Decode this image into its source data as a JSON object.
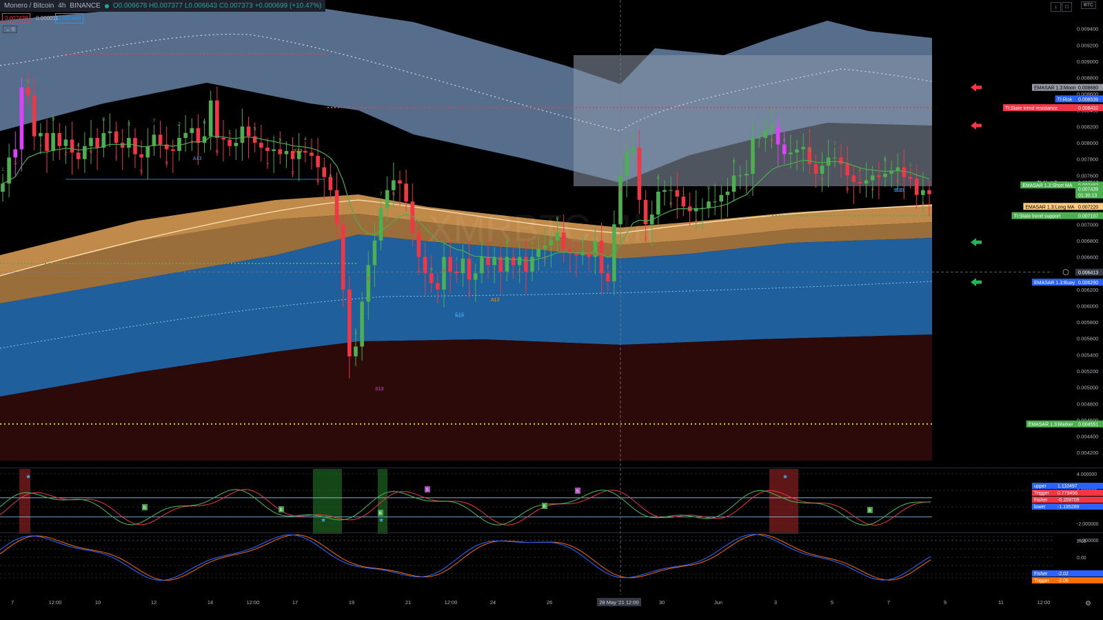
{
  "header": {
    "symbol": "Monero / Bitcoin",
    "interval": "4h",
    "exchange": "BINANCE",
    "ohlc": "O0.006678 H0.007377 L0.006643 C0.007373 +0.000699 (+10.47%)",
    "sell": "0.007438",
    "spread": "0.000011",
    "buy": "0.007449",
    "collapse_label": "6",
    "currency_btn": "BTC",
    "watermark": "XMRBTC, 4h"
  },
  "colors": {
    "bg": "#000000",
    "up": "#26a69a",
    "up_candle": "#4caf50",
    "down_candle": "#f23645",
    "pink_candle": "#e040fb",
    "moon_band": "#5b7394",
    "risk_band": "#8e9aab",
    "long_ma_band": "#c08a4a",
    "buy_band": "#1f5f9c",
    "marker_band": "#2d0a0a",
    "short_ma": "#4caf50",
    "resistance": "#f23645",
    "support": "#4caf50"
  },
  "icons": [
    "red-arrow-left-icon",
    "green-arrow-left-icon",
    "star-icon",
    "plus-circle-icon",
    "settings-icon"
  ],
  "chart_data": {
    "type": "candlestick",
    "title": "",
    "price_axis": {
      "min": 0.0041,
      "max": 0.0096,
      "ticks": [
        "0.009400",
        "0.009200",
        "0.009000",
        "0.008800",
        "0.008600",
        "0.008400",
        "0.008200",
        "0.008000",
        "0.007800",
        "0.007600",
        "0.007400",
        "0.007200",
        "0.007000",
        "0.006800",
        "0.006600",
        "0.006400",
        "0.006200",
        "0.006000",
        "0.005800",
        "0.005600",
        "0.005400",
        "0.005200",
        "0.005000",
        "0.004800",
        "0.004600",
        "0.004400",
        "0.004200"
      ]
    },
    "time_axis": {
      "ticks": [
        "7",
        "12:00",
        "10",
        "12",
        "14",
        "12:00",
        "17",
        "19",
        "21",
        "12:00",
        "24",
        "26",
        "28 May '21",
        "12:00",
        "30",
        "Jun",
        "3",
        "5",
        "7",
        "9",
        "11",
        "12:00"
      ],
      "cursor_label": "28 May '21  12:00"
    },
    "closes": [
      0.0075,
      0.00782,
      0.00792,
      0.00868,
      0.00858,
      0.00808,
      0.00812,
      0.0079,
      0.00812,
      0.00796,
      0.00804,
      0.00788,
      0.0078,
      0.00796,
      0.00806,
      0.00794,
      0.00812,
      0.00814,
      0.008,
      0.00794,
      0.00806,
      0.00786,
      0.00782,
      0.00796,
      0.0081,
      0.00798,
      0.00792,
      0.0079,
      0.00806,
      0.00812,
      0.00818,
      0.008,
      0.00808,
      0.00852,
      0.00806,
      0.00804,
      0.00796,
      0.008,
      0.0082,
      0.00808,
      0.008,
      0.00794,
      0.0079,
      0.00792,
      0.00786,
      0.0079,
      0.0078,
      0.0079,
      0.00788,
      0.00784,
      0.0077,
      0.00758,
      0.00742,
      0.007,
      0.0062,
      0.00538,
      0.0055,
      0.00605,
      0.0065,
      0.0068,
      0.0072,
      0.00742,
      0.00754,
      0.0075,
      0.00728,
      0.0069,
      0.0066,
      0.0064,
      0.00628,
      0.0062,
      0.0066,
      0.00642,
      0.0064,
      0.00658,
      0.00632,
      0.0064,
      0.0066,
      0.0065,
      0.0066,
      0.00642,
      0.0066,
      0.0065,
      0.0066,
      0.00642,
      0.0066,
      0.0067,
      0.00674,
      0.0068,
      0.0069,
      0.0067,
      0.00664,
      0.00662,
      0.00664,
      0.0066,
      0.0068,
      0.0064,
      0.0063,
      0.007,
      0.0076,
      0.00788,
      0.00794,
      0.0073,
      0.007,
      0.00712,
      0.0074,
      0.00742,
      0.00742,
      0.00734,
      0.00722,
      0.00716,
      0.0072,
      0.0072,
      0.00728,
      0.00728,
      0.00736,
      0.0074,
      0.0076,
      0.0076,
      0.00762,
      0.00806,
      0.00806,
      0.00815,
      0.0082,
      0.00798,
      0.00786,
      0.00788,
      0.00792,
      0.00795,
      0.00774,
      0.00762,
      0.00772,
      0.00782,
      0.00782,
      0.00774,
      0.0076,
      0.00752,
      0.0075,
      0.00754,
      0.0076,
      0.00758,
      0.00762,
      0.00766,
      0.0077,
      0.00758,
      0.00756,
      0.00736,
      0.00742,
      0.00737
    ],
    "tags": [
      {
        "label": "EMASAR 1.3:Moon",
        "value": "0.008680",
        "color": "#9598a1",
        "text": "#000000",
        "price": 0.00868
      },
      {
        "label": "TI:Risk",
        "value": "0.008539",
        "color": "#2962ff",
        "text": "#ffffff",
        "price": 0.008539
      },
      {
        "label": "TI:State trend resistance",
        "value": "0.008432",
        "color": "#f23645",
        "text": "#ffffff",
        "price": 0.008432
      },
      {
        "label": "TI:Alert Count",
        "value": "0.007517",
        "color": "#000000",
        "text": "#d1d4dc",
        "price": 0.007517
      },
      {
        "label": "EMASAR 1.3:Short MA",
        "value": "0.007483",
        "color": "#4caf50",
        "text": "#ffffff",
        "price": 0.007483
      },
      {
        "label": "",
        "value": "0.007439",
        "color": "#4caf50",
        "text": "#ffffff",
        "price": 0.007439
      },
      {
        "label": "",
        "value": "01:30:13",
        "color": "#4caf50",
        "text": "#ffffff",
        "price": 0.00736
      },
      {
        "label": "EMASAR 1.3:Long MA",
        "value": "0.007220",
        "color": "#ffcc80",
        "text": "#000000",
        "price": 0.00722
      },
      {
        "label": "TI:State trend support",
        "value": "0.007107",
        "color": "#4caf50",
        "text": "#ffffff",
        "price": 0.007107
      },
      {
        "label": "",
        "value": "0.006413",
        "color": "#363a45",
        "text": "#ffffff",
        "price": 0.006413
      },
      {
        "label": "EMASAR 1.3:Buoy",
        "value": "0.006290",
        "color": "#2962ff",
        "text": "#ffffff",
        "price": 0.00629
      },
      {
        "label": "EMASAR 1.3:Marker",
        "value": "0.004551",
        "color": "#4caf50",
        "text": "#ffffff",
        "price": 0.004551
      }
    ],
    "numbers_labels": [
      "A13",
      "S13",
      "S13",
      "A13",
      "C13",
      "S13",
      "A13",
      "B13"
    ],
    "osc1": {
      "ticks": [
        "4.000000",
        "2.000000",
        "-2.000000",
        "-4.000000"
      ],
      "tags": [
        {
          "label": "upper",
          "value": "1.110497",
          "color": "#2962ff"
        },
        {
          "label": "Trigger",
          "value": "0.779456",
          "color": "#f23645"
        },
        {
          "label": "Fisher",
          "value": "-0.159709",
          "color": "#f23645"
        },
        {
          "label": "lower",
          "value": "-1.195289",
          "color": "#2962ff"
        }
      ],
      "signals": [
        "S",
        "B"
      ]
    },
    "osc2": {
      "ticks": [
        "2.00",
        "0.00",
        "-2.00"
      ],
      "tags": [
        {
          "label": "Fisher",
          "value": "-2.02",
          "color": "#2962ff"
        },
        {
          "label": "Trigger",
          "value": "-2.06",
          "color": "#ff6d00"
        }
      ]
    }
  }
}
